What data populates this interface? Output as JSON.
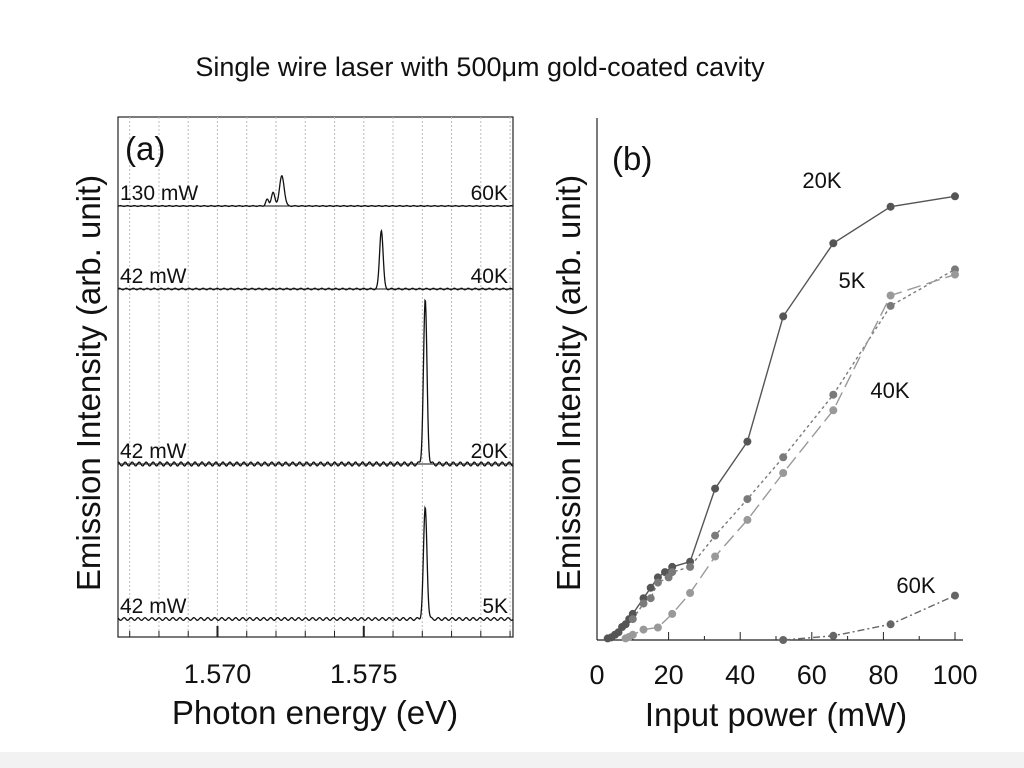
{
  "title": "Single wire laser with 500μm gold-coated cavity",
  "chart_data": [
    {
      "type": "line",
      "panel_label": "(a)",
      "xlabel": "Photon energy (eV)",
      "ylabel": "Emission Intensity (arb. unit)",
      "xlim": [
        1.5666,
        1.5801
      ],
      "x_ticks": [
        1.57,
        1.575
      ],
      "x_tick_labels": [
        "1.570",
        "1.575"
      ],
      "grid": true,
      "series": [
        {
          "power": "130 mW",
          "temp": "60K",
          "peaks": [
            {
              "x": 1.5717,
              "h": 0.22,
              "w": 5e-05
            },
            {
              "x": 1.5719,
              "h": 0.45,
              "w": 6e-05
            },
            {
              "x": 1.5722,
              "h": 1.0,
              "w": 8e-05
            }
          ]
        },
        {
          "power": "42 mW",
          "temp": "40K",
          "peaks": [
            {
              "x": 1.5756,
              "h": 1.0,
              "w": 6e-05
            }
          ]
        },
        {
          "power": "42 mW",
          "temp": "20K",
          "peaks": [
            {
              "x": 1.5771,
              "h": 1.0,
              "w": 6e-05
            }
          ]
        },
        {
          "power": "42 mW",
          "temp": "5K",
          "peaks": [
            {
              "x": 1.5771,
              "h": 1.0,
              "w": 6e-05
            }
          ]
        }
      ]
    },
    {
      "type": "line",
      "panel_label": "(b)",
      "xlabel": "Input power (mW)",
      "ylabel": "Emission Intensity (arb. unit)",
      "xlim": [
        0,
        100
      ],
      "ylim": [
        0,
        100
      ],
      "x_ticks": [
        0,
        20,
        40,
        60,
        80,
        100
      ],
      "x_tick_labels": [
        "0",
        "20",
        "40",
        "60",
        "80",
        "100"
      ],
      "grid": false,
      "series": [
        {
          "name": "20K",
          "color": "#555555",
          "dash": "solid",
          "x": [
            3,
            4,
            5,
            6,
            7,
            8,
            9,
            10,
            13,
            15,
            17,
            19,
            21,
            26,
            33,
            42,
            52,
            66,
            82,
            100
          ],
          "y": [
            0.3,
            0.5,
            1,
            1.5,
            2.5,
            3,
            4,
            5,
            8,
            10,
            12,
            13,
            14,
            15,
            29,
            38,
            62,
            76,
            83,
            85
          ]
        },
        {
          "name": "5K",
          "color": "#7a7a7a",
          "dash": "3,3",
          "x": [
            10,
            13,
            15,
            17,
            20,
            21,
            26,
            33,
            42,
            52,
            66,
            82,
            100
          ],
          "y": [
            4,
            7,
            8,
            11,
            12,
            13,
            14,
            20,
            27,
            35,
            47,
            64,
            71
          ]
        },
        {
          "name": "40K",
          "color": "#999999",
          "dash": "14,6",
          "x": [
            8,
            9,
            10,
            13,
            17,
            21,
            26,
            33,
            42,
            52,
            66,
            82,
            100
          ],
          "y": [
            0.3,
            0.6,
            1,
            2,
            2.4,
            5,
            9,
            16,
            23,
            32,
            44,
            66,
            70
          ]
        },
        {
          "name": "60K",
          "color": "#666666",
          "dash": "7,3,2,3",
          "x": [
            52,
            66,
            82,
            100
          ],
          "y": [
            0,
            0.8,
            3,
            8.5
          ]
        }
      ]
    }
  ]
}
